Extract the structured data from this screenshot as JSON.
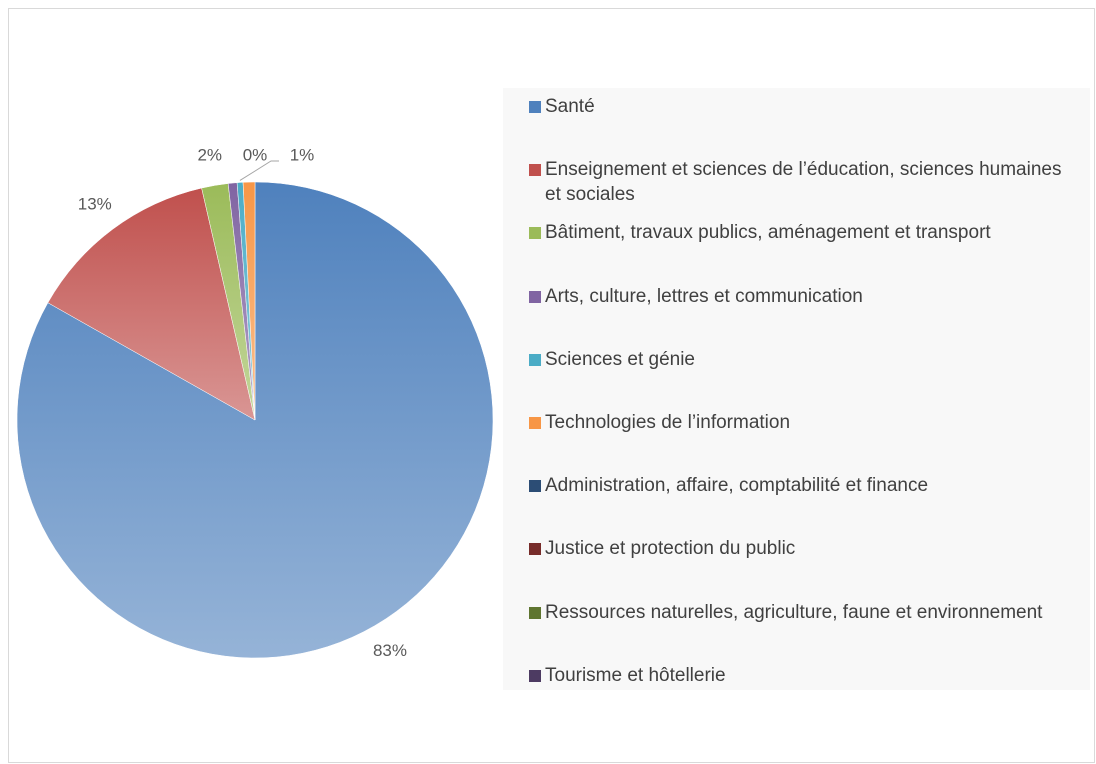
{
  "chart_data": {
    "type": "pie",
    "categories": [
      "Santé",
      "Enseignement et sciences de l’éducation, sciences humaines et sociales",
      "Bâtiment, travaux publics, aménagement et transport",
      "Arts, culture, lettres et communication",
      "Sciences et génie",
      "Technologies de l’information",
      "Administration, affaire, comptabilité et finance",
      "Justice et protection du public",
      "Ressources naturelles, agriculture, faune et environnement",
      "Tourisme et hôtellerie"
    ],
    "values": [
      83.2,
      13.2,
      1.8,
      0.6,
      0.4,
      0.8,
      0,
      0,
      0,
      0
    ],
    "value_labels": [
      "83%",
      "13%",
      "2%",
      null,
      "0%",
      "1%",
      null,
      null,
      null,
      null
    ],
    "colors": [
      "#4f81bd",
      "#c0504d",
      "#9bbb59",
      "#8064a2",
      "#4bacc6",
      "#f79646",
      "#2c4d75",
      "#772c2a",
      "#5f7530",
      "#4d3b62"
    ],
    "legend": "right"
  }
}
